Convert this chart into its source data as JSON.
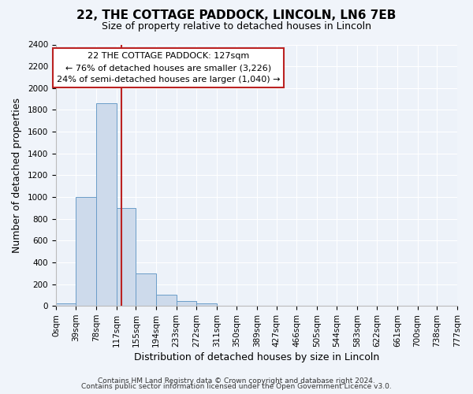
{
  "title": "22, THE COTTAGE PADDOCK, LINCOLN, LN6 7EB",
  "subtitle": "Size of property relative to detached houses in Lincoln",
  "xlabel": "Distribution of detached houses by size in Lincoln",
  "ylabel": "Number of detached properties",
  "footnote1": "Contains HM Land Registry data © Crown copyright and database right 2024.",
  "footnote2": "Contains public sector information licensed under the Open Government Licence v3.0.",
  "bin_edges": [
    0,
    39,
    78,
    117,
    155,
    194,
    233,
    272,
    311,
    350,
    389,
    427,
    466,
    505,
    544,
    583,
    622,
    661,
    700,
    738,
    777
  ],
  "bin_heights": [
    25,
    1000,
    1860,
    900,
    300,
    100,
    45,
    25,
    0,
    0,
    0,
    0,
    0,
    0,
    0,
    0,
    0,
    0,
    0,
    0
  ],
  "bar_color": "#cddaeb",
  "bar_edge_color": "#6b9dc8",
  "vline_x": 127,
  "vline_color": "#bb2222",
  "annotation_text": "22 THE COTTAGE PADDOCK: 127sqm\n← 76% of detached houses are smaller (3,226)\n24% of semi-detached houses are larger (1,040) →",
  "annotation_box_color": "#ffffff",
  "annotation_box_edge": "#bb2222",
  "ylim": [
    0,
    2400
  ],
  "yticks": [
    0,
    200,
    400,
    600,
    800,
    1000,
    1200,
    1400,
    1600,
    1800,
    2000,
    2200,
    2400
  ],
  "xtick_labels": [
    "0sqm",
    "39sqm",
    "78sqm",
    "117sqm",
    "155sqm",
    "194sqm",
    "233sqm",
    "272sqm",
    "311sqm",
    "350sqm",
    "389sqm",
    "427sqm",
    "466sqm",
    "505sqm",
    "544sqm",
    "583sqm",
    "622sqm",
    "661sqm",
    "700sqm",
    "738sqm",
    "777sqm"
  ],
  "background_color": "#f0f4fa",
  "plot_background": "#edf2f9",
  "grid_color": "#ffffff",
  "title_fontsize": 11,
  "subtitle_fontsize": 9,
  "ylabel_fontsize": 9,
  "xlabel_fontsize": 9,
  "tick_fontsize": 7.5,
  "annotation_fontsize": 8,
  "footnote_fontsize": 6.5
}
